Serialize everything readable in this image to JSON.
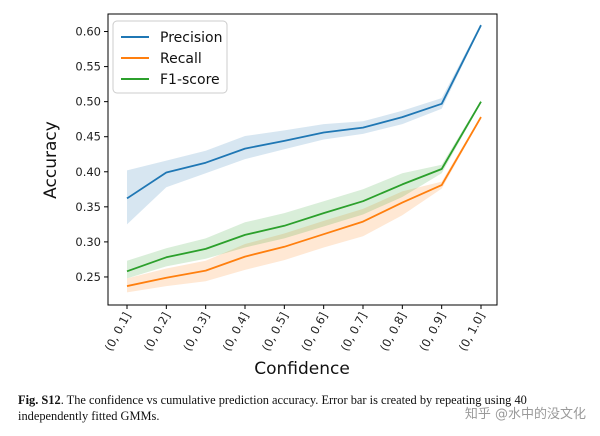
{
  "chart_data": {
    "type": "line",
    "title": "",
    "xlabel": "Confidence",
    "ylabel": "Accuracy",
    "categories": [
      "(0, 0.1]",
      "(0, 0.2]",
      "(0, 0.3]",
      "(0, 0.4]",
      "(0, 0.5]",
      "(0, 0.6]",
      "(0, 0.7]",
      "(0, 0.8]",
      "(0, 0.9]",
      "(0, 1.0]"
    ],
    "ylim": [
      0.21,
      0.625
    ],
    "yticks": [
      "0.25",
      "0.30",
      "0.35",
      "0.40",
      "0.45",
      "0.50",
      "0.55",
      "0.60"
    ],
    "grid": false,
    "legend_position": "top-left",
    "series": [
      {
        "name": "Precision",
        "color": "#1f77b4",
        "values": [
          0.362,
          0.399,
          0.413,
          0.433,
          0.444,
          0.456,
          0.463,
          0.478,
          0.497,
          0.609
        ],
        "lower": [
          0.325,
          0.378,
          0.398,
          0.418,
          0.432,
          0.446,
          0.454,
          0.468,
          0.49,
          0.607
        ],
        "upper": [
          0.402,
          0.416,
          0.43,
          0.451,
          0.459,
          0.468,
          0.472,
          0.487,
          0.505,
          0.611
        ]
      },
      {
        "name": "Recall",
        "color": "#ff7f0e",
        "values": [
          0.237,
          0.249,
          0.259,
          0.279,
          0.293,
          0.311,
          0.329,
          0.356,
          0.381,
          0.478
        ],
        "lower": [
          0.228,
          0.237,
          0.244,
          0.26,
          0.274,
          0.292,
          0.308,
          0.338,
          0.376,
          0.476
        ],
        "upper": [
          0.248,
          0.262,
          0.273,
          0.297,
          0.312,
          0.33,
          0.347,
          0.372,
          0.386,
          0.48
        ]
      },
      {
        "name": "F1-score",
        "color": "#2ca02c",
        "values": [
          0.258,
          0.278,
          0.29,
          0.31,
          0.323,
          0.341,
          0.358,
          0.382,
          0.404,
          0.5
        ],
        "lower": [
          0.248,
          0.265,
          0.276,
          0.292,
          0.305,
          0.322,
          0.339,
          0.364,
          0.398,
          0.498
        ],
        "upper": [
          0.273,
          0.291,
          0.305,
          0.328,
          0.341,
          0.358,
          0.375,
          0.398,
          0.41,
          0.502
        ]
      }
    ]
  },
  "caption": {
    "label": "Fig. S12",
    "text": ". The confidence vs cumulative prediction accuracy. Error bar is created by repeating using 40 independently fitted GMMs."
  },
  "watermark": "知乎 @水中的没文化"
}
